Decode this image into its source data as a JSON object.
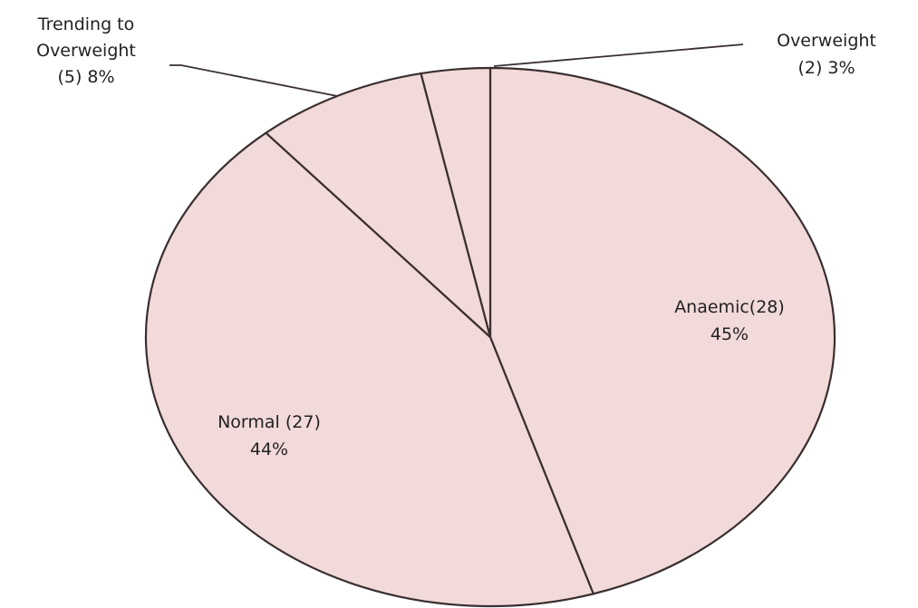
{
  "chart_data": {
    "type": "pie",
    "title": "",
    "slices": [
      {
        "category": "Anaemic",
        "count": 28,
        "percent": 45,
        "label_lines": [
          "Anaemic(28)",
          "45%"
        ]
      },
      {
        "category": "Normal",
        "count": 27,
        "percent": 44,
        "label_lines": [
          "Normal (27)",
          "44%"
        ]
      },
      {
        "category": "Trending to Overweight",
        "count": 5,
        "percent": 8,
        "label_lines": [
          "Trending to",
          "Overweight",
          "(5) 8%"
        ]
      },
      {
        "category": "Overweight",
        "count": 2,
        "percent": 3,
        "label_lines": [
          "Overweight",
          "(2) 3%"
        ]
      }
    ],
    "colors": {
      "slice_fill": "#f2d9da",
      "outline": "#3a2f2f",
      "background": "#ffffff"
    },
    "legend": "none"
  }
}
